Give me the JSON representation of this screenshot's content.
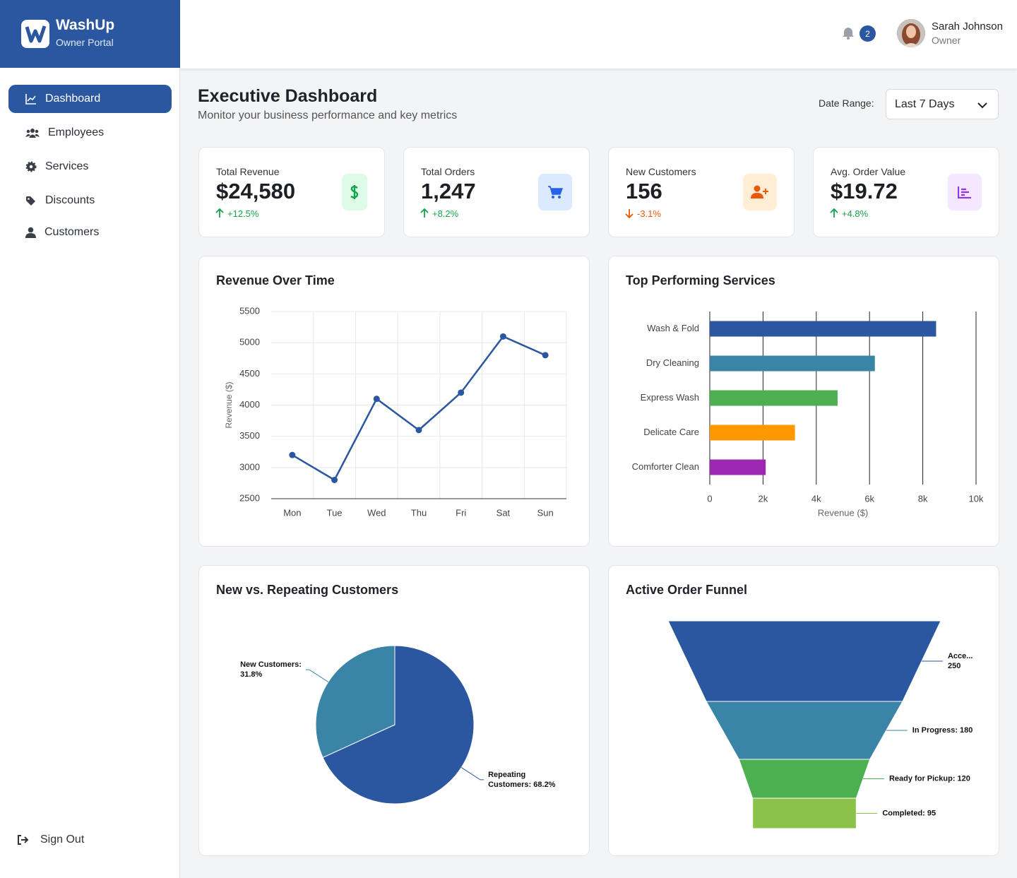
{
  "sidebar": {
    "brand": "WashUp",
    "subtitle": "Owner Portal",
    "nav": [
      "Dashboard",
      "Employees",
      "Services",
      "Discounts",
      "Customers"
    ],
    "sign_out": "Sign Out"
  },
  "header": {
    "notification_count": 2,
    "user_name": "Sarah Johnson",
    "user_role": "Owner"
  },
  "page": {
    "title": "Executive Dashboard",
    "subtitle": "Monitor your business performance and key metrics",
    "date_range_label": "Date Range:",
    "date_range_value": "Last 7 Days"
  },
  "kpis": [
    {
      "label": "Total Revenue",
      "value": "$24,580",
      "change": "+12.5%",
      "trend": "up"
    },
    {
      "label": "Total Orders",
      "value": "1,247",
      "change": "+8.2%",
      "trend": "up"
    },
    {
      "label": "New Customers",
      "value": "156",
      "change": "-3.1%",
      "trend": "down"
    },
    {
      "label": "Avg. Order Value",
      "value": "$19.72",
      "change": "+4.8%",
      "trend": "up"
    }
  ],
  "chart_data": [
    {
      "type": "line",
      "title": "Revenue Over Time",
      "y_label": "Revenue ($)",
      "categories": [
        "Mon",
        "Tue",
        "Wed",
        "Thu",
        "Fri",
        "Sat",
        "Sun"
      ],
      "values": [
        3200,
        2800,
        4100,
        3600,
        4200,
        5100,
        4800
      ],
      "color": "#2a579f",
      "ylim": [
        2500,
        5500
      ],
      "yticks": [
        2500,
        3000,
        3500,
        4000,
        4500,
        5000,
        5500
      ],
      "grid": true
    },
    {
      "type": "bar",
      "orientation": "horizontal",
      "title": "Top Performing Services",
      "x_label": "Revenue ($)",
      "categories": [
        "Wash & Fold",
        "Dry Cleaning",
        "Express Wash",
        "Delicate Care",
        "Comforter Clean"
      ],
      "values": [
        8500,
        6200,
        4800,
        3200,
        2100
      ],
      "colors": [
        "#2a579f",
        "#3a84a8",
        "#4caf50",
        "#ff9800",
        "#9c27b0"
      ],
      "xlim": [
        0,
        10000
      ],
      "xticks": [
        0,
        {
          "value": 2000,
          "label": "2k"
        },
        {
          "value": 4000,
          "label": "4k"
        },
        {
          "value": 6000,
          "label": "6k"
        },
        {
          "value": 8000,
          "label": "8k"
        },
        {
          "value": 10000,
          "label": "10k"
        }
      ],
      "grid": true
    },
    {
      "type": "pie",
      "title": "New vs. Repeating Customers",
      "values": [
        68.2,
        31.8
      ],
      "value_labels": [
        [
          "Repeating",
          "Customers: 68.2%"
        ],
        [
          "New Customers:",
          "31.8%"
        ]
      ],
      "colors": [
        "#2a579f",
        "#3a84a8"
      ]
    },
    {
      "type": "funnel",
      "title": "Active Order Funnel",
      "values": [
        250,
        180,
        120,
        95
      ],
      "value_labels": [
        [
          "Acce...",
          "250"
        ],
        [
          "In Progress: 180"
        ],
        [
          "Ready for Pickup: 120"
        ],
        [
          "Completed: 95"
        ]
      ],
      "colors": [
        "#2a579f",
        "#3a84a8",
        "#4caf50",
        "#8bc34a"
      ]
    }
  ]
}
